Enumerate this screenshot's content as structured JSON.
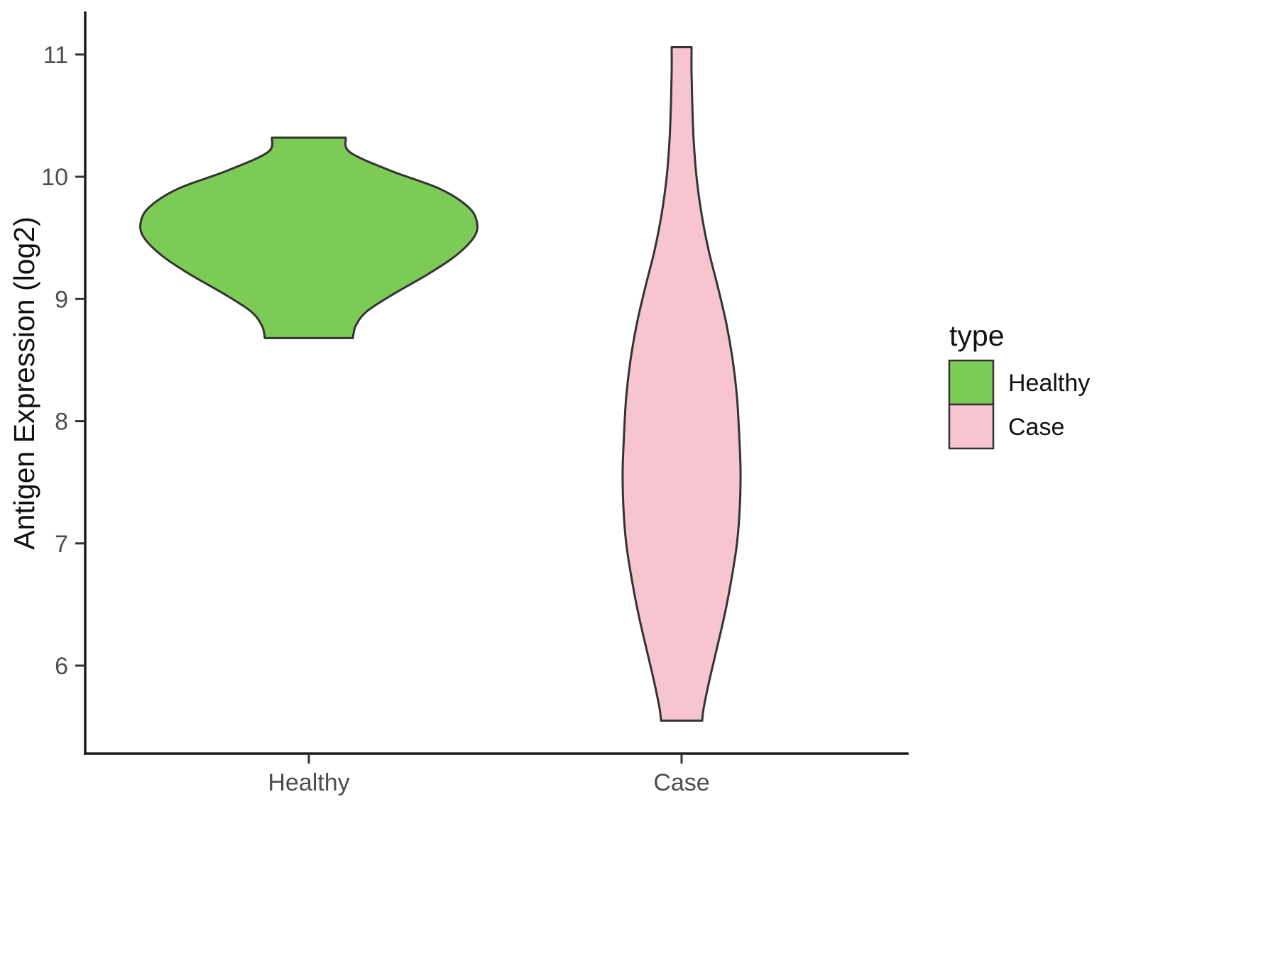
{
  "chart_data": {
    "type": "violin",
    "title": "",
    "xlabel": "",
    "ylabel": "Antigen Expression (log2)",
    "ylim": [
      5.28,
      11.33
    ],
    "yticks": [
      6,
      7,
      8,
      9,
      10,
      11
    ],
    "categories": [
      "Healthy",
      "Case"
    ],
    "grid": false,
    "outline_color": "#333333",
    "legend": {
      "title": "type",
      "position": "right",
      "entries": [
        {
          "label": "Healthy",
          "color": "#7CCB57"
        },
        {
          "label": "Case",
          "color": "#F7C5D0"
        }
      ]
    },
    "series": [
      {
        "name": "Healthy",
        "color": "#7CCB57",
        "value_range": [
          8.68,
          10.32
        ],
        "peak_density_at": 9.62,
        "profile": [
          [
            10.32,
            52
          ],
          [
            10.2,
            58
          ],
          [
            10.05,
            115
          ],
          [
            9.9,
            185
          ],
          [
            9.75,
            225
          ],
          [
            9.62,
            237
          ],
          [
            9.5,
            232
          ],
          [
            9.35,
            206
          ],
          [
            9.2,
            167
          ],
          [
            9.05,
            122
          ],
          [
            8.9,
            82
          ],
          [
            8.78,
            66
          ],
          [
            8.68,
            62
          ]
        ]
      },
      {
        "name": "Case",
        "color": "#F7C5D0",
        "value_range": [
          5.55,
          11.06
        ],
        "peak_density_at": 7.6,
        "profile": [
          [
            11.06,
            14
          ],
          [
            10.85,
            14
          ],
          [
            10.6,
            15
          ],
          [
            10.3,
            17
          ],
          [
            10.0,
            21
          ],
          [
            9.7,
            28
          ],
          [
            9.4,
            38
          ],
          [
            9.1,
            51
          ],
          [
            8.8,
            63
          ],
          [
            8.5,
            72
          ],
          [
            8.2,
            78
          ],
          [
            7.9,
            81
          ],
          [
            7.6,
            83
          ],
          [
            7.3,
            82
          ],
          [
            7.0,
            78
          ],
          [
            6.7,
            70
          ],
          [
            6.4,
            60
          ],
          [
            6.1,
            48
          ],
          [
            5.85,
            38
          ],
          [
            5.65,
            31
          ],
          [
            5.55,
            29
          ]
        ]
      }
    ]
  }
}
